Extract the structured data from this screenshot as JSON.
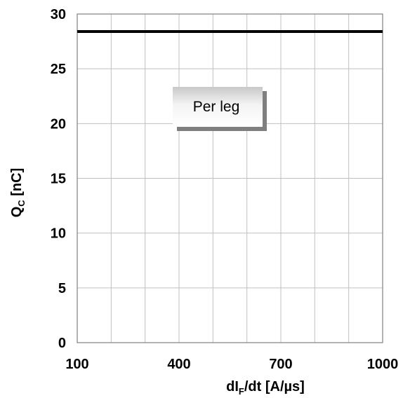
{
  "chart_data": {
    "type": "line",
    "x_axis": {
      "label_main": "dI",
      "label_sub": "F",
      "label_rest": "/dt [A/µs]",
      "range": [
        100,
        1000
      ],
      "tick_values": [
        100,
        400,
        700,
        1000
      ],
      "tick_labels": [
        "100",
        "400",
        "700",
        "1000"
      ],
      "gridlines": [
        100,
        200,
        300,
        400,
        500,
        600,
        700,
        800,
        900,
        1000
      ]
    },
    "y_axis": {
      "label_main": "Q",
      "label_sub": "C",
      "label_rest": " [nC]",
      "range": [
        0,
        30
      ],
      "tick_values": [
        0,
        5,
        10,
        15,
        20,
        25,
        30
      ],
      "tick_labels": [
        "0",
        "5",
        "10",
        "15",
        "20",
        "25",
        "30"
      ],
      "gridlines": [
        0,
        5,
        10,
        15,
        20,
        25,
        30
      ]
    },
    "series": [
      {
        "x": [
          100,
          1000
        ],
        "y": [
          28.4,
          28.4
        ],
        "color": "#000000"
      }
    ],
    "annotation": {
      "text": "Per leg"
    },
    "grid": true,
    "legend": false
  }
}
